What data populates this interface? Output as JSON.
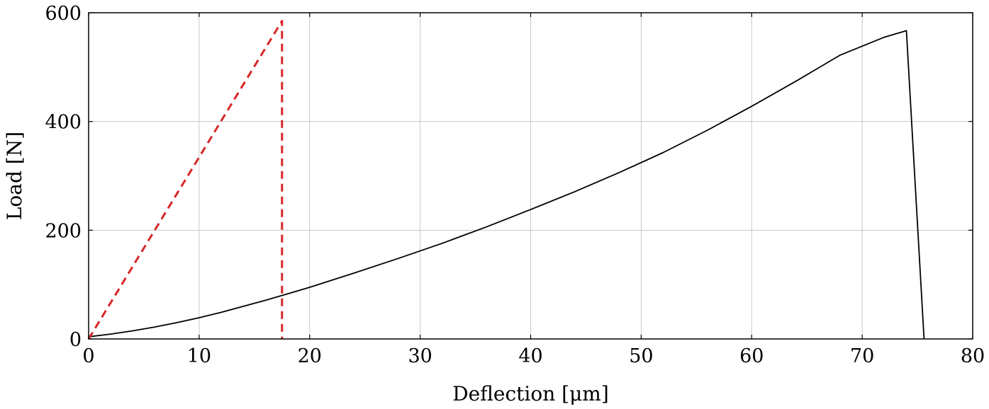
{
  "chart_data": {
    "type": "line",
    "xlabel": "Deflection [μm]",
    "ylabel": "Load [N]",
    "xlim": [
      0,
      80
    ],
    "ylim": [
      0,
      600
    ],
    "xticks": [
      0,
      10,
      20,
      30,
      40,
      50,
      60,
      70,
      80
    ],
    "yticks": [
      0,
      200,
      400,
      600
    ],
    "grid": true,
    "series": [
      {
        "style": "solid",
        "color": "#000000",
        "x": [
          0,
          2,
          4,
          6,
          8,
          10,
          12,
          14,
          16,
          18,
          20,
          24,
          28,
          32,
          36,
          40,
          44,
          48,
          52,
          56,
          60,
          64,
          68,
          72,
          74,
          75.6
        ],
        "y": [
          4,
          9,
          15,
          22,
          30,
          39,
          49,
          60,
          71,
          83,
          95,
          121,
          148,
          176,
          206,
          238,
          271,
          306,
          343,
          384,
          428,
          474,
          522,
          555,
          567,
          0
        ]
      },
      {
        "style": "dashed",
        "color": "#d62728",
        "x": [
          0,
          17.5,
          17.5
        ],
        "y": [
          0,
          585,
          0
        ]
      }
    ]
  }
}
